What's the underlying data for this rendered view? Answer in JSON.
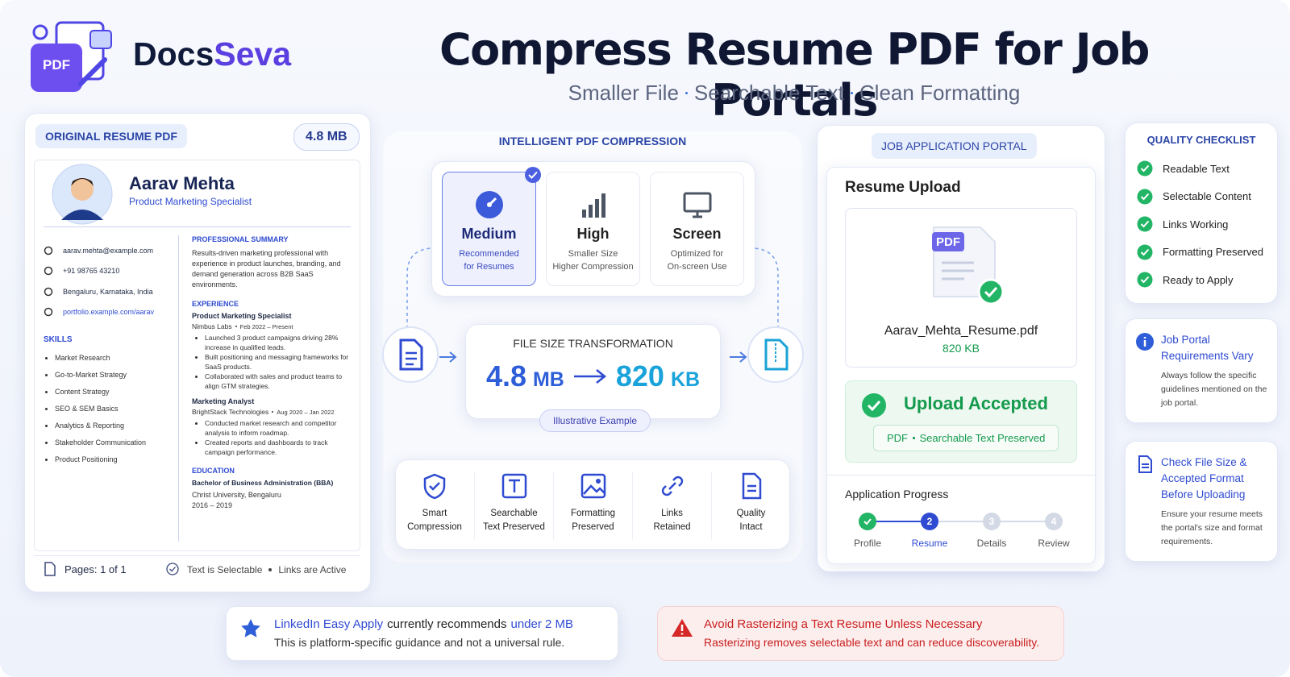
{
  "brand": {
    "logo_text": "PDF",
    "name_first": "Docs",
    "name_second": "Seva"
  },
  "header": {
    "title": "Compress Resume PDF for Job Portals",
    "subtitle_items": [
      "Smaller File",
      "Searchable Text",
      "Clean Formatting"
    ]
  },
  "original": {
    "label": "ORIGINAL RESUME PDF",
    "size": "4.8 MB",
    "name": "Aarav Mehta",
    "role": "Product Marketing Specialist",
    "contacts": [
      "aarav.mehta@example.com",
      "+91 98765 43210",
      "Bengaluru, Karnataka, India",
      "portfolio.example.com/aarav"
    ],
    "skills_heading": "SKILLS",
    "skills": [
      "Market Research",
      "Go-to-Market Strategy",
      "Content Strategy",
      "SEO & SEM Basics",
      "Analytics & Reporting",
      "Stakeholder Communication",
      "Product Positioning"
    ],
    "summary_heading": "PROFESSIONAL SUMMARY",
    "summary": "Results-driven marketing professional with experience in product launches, branding, and demand generation across B2B SaaS environments.",
    "experience_heading": "EXPERIENCE",
    "jobs": [
      {
        "title": "Product Marketing Specialist",
        "company": "Nimbus Labs",
        "dates": "Feb 2022 – Present",
        "bullets": [
          "Launched 3 product campaigns driving 28% increase in qualified leads.",
          "Built positioning and messaging frameworks for SaaS products.",
          "Collaborated with sales and product teams to align GTM strategies."
        ]
      },
      {
        "title": "Marketing Analyst",
        "company": "BrightStack Technologies",
        "dates": "Aug 2020 – Jan 2022",
        "bullets": [
          "Conducted market research and competitor analysis to inform roadmap.",
          "Created reports and dashboards to track campaign performance."
        ]
      }
    ],
    "education_heading": "EDUCATION",
    "degree": "Bachelor of Business Administration (BBA)",
    "school": "Christ University, Bengaluru",
    "years": "2016 – 2019",
    "footer": {
      "pages": "Pages: 1 of 1",
      "selectable": "Text is Selectable",
      "links": "Links are Active"
    }
  },
  "compression": {
    "heading": "INTELLIGENT PDF COMPRESSION",
    "options": [
      {
        "name": "Medium",
        "desc": [
          "Recommended",
          "for Resumes"
        ]
      },
      {
        "name": "High",
        "desc": [
          "Smaller Size",
          "Higher Compression"
        ]
      },
      {
        "name": "Screen",
        "desc": [
          "Optimized for",
          "On-screen Use"
        ]
      }
    ],
    "transform": {
      "heading": "FILE SIZE TRANSFORMATION",
      "from_number": "4.8",
      "from_unit": "MB",
      "to_number": "820",
      "to_unit": "KB",
      "note": "Illustrative Example"
    },
    "features": [
      [
        "Smart",
        "Compression"
      ],
      [
        "Searchable",
        "Text Preserved"
      ],
      [
        "Formatting",
        "Preserved"
      ],
      [
        "Links",
        "Retained"
      ],
      [
        "Quality",
        "Intact"
      ]
    ]
  },
  "portal": {
    "heading": "JOB APPLICATION PORTAL",
    "title": "Resume Upload",
    "file_badge": "PDF",
    "file_name": "Aarav_Mehta_Resume.pdf",
    "file_size": "820 KB",
    "accepted": "Upload Accepted",
    "accepted_tags": [
      "PDF",
      "Searchable Text Preserved"
    ],
    "progress_title": "Application Progress",
    "steps": [
      {
        "label": "Profile"
      },
      {
        "number": 2,
        "label": "Resume"
      },
      {
        "number": 3,
        "label": "Details"
      },
      {
        "number": 4,
        "label": "Review"
      }
    ]
  },
  "checklist": {
    "heading": "QUALITY CHECKLIST",
    "items": [
      "Readable Text",
      "Selectable Content",
      "Links Working",
      "Formatting Preserved",
      "Ready to Apply"
    ]
  },
  "info_cards": [
    {
      "title": "Job Portal Requirements Vary",
      "body": "Always follow the specific guidelines mentioned on the job portal."
    },
    {
      "title": "Check File Size & Accepted Format Before Uploading",
      "body": "Ensure your resume meets the portal's size and format requirements."
    }
  ],
  "notes": {
    "linkedin": {
      "lead": "LinkedIn Easy Apply",
      "middle": "currently recommends",
      "limit": "under 2 MB",
      "body": "This is platform-specific guidance and not a universal rule."
    },
    "warning": {
      "title": "Avoid Rasterizing a Text Resume Unless Necessary",
      "body": "Rasterizing removes selectable text and can reduce discoverability."
    }
  }
}
